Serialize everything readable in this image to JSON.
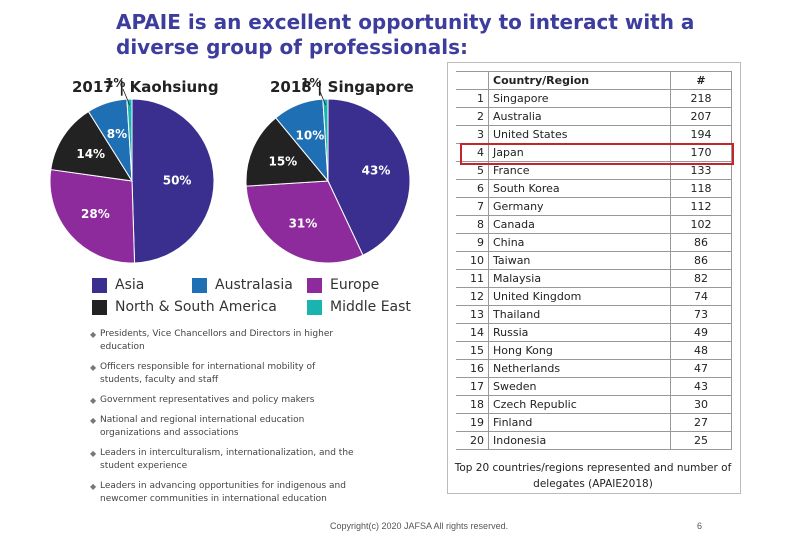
{
  "title": "APAIE is an excellent opportunity to interact with a diverse group of professionals:",
  "colors": {
    "asia": "#3a2f8f",
    "australasia": "#1f6fb4",
    "europe": "#8e2b9c",
    "north_south_america": "#222222",
    "middle_east": "#19b3b0"
  },
  "chart_data": [
    {
      "type": "pie",
      "title": "2017 | Kaohsiung",
      "labels": [
        "Asia",
        "Europe",
        "North & South America",
        "Australasia",
        "Middle East"
      ],
      "values": [
        50,
        28,
        14,
        8,
        1
      ],
      "value_labels": [
        "50%",
        "28%",
        "14%",
        "8%",
        "1%"
      ]
    },
    {
      "type": "pie",
      "title": "2018 | Singapore",
      "labels": [
        "Asia",
        "Europe",
        "North & South America",
        "Australasia",
        "Middle East"
      ],
      "values": [
        43,
        31,
        15,
        10,
        1
      ],
      "value_labels": [
        "43%",
        "31%",
        "15%",
        "10%",
        "1%"
      ]
    },
    {
      "type": "table",
      "columns": [
        "",
        "Country/Region",
        "#"
      ],
      "rows": [
        {
          "rank": "1",
          "country": "Singapore",
          "delegates": "218"
        },
        {
          "rank": "2",
          "country": "Australia",
          "delegates": "207"
        },
        {
          "rank": "3",
          "country": "United States",
          "delegates": "194"
        },
        {
          "rank": "4",
          "country": "Japan",
          "delegates": "170"
        },
        {
          "rank": "5",
          "country": "France",
          "delegates": "133"
        },
        {
          "rank": "6",
          "country": "South Korea",
          "delegates": "118"
        },
        {
          "rank": "7",
          "country": "Germany",
          "delegates": "112"
        },
        {
          "rank": "8",
          "country": "Canada",
          "delegates": "102"
        },
        {
          "rank": "9",
          "country": "China",
          "delegates": "86"
        },
        {
          "rank": "10",
          "country": "Taiwan",
          "delegates": "86"
        },
        {
          "rank": "11",
          "country": "Malaysia",
          "delegates": "82"
        },
        {
          "rank": "12",
          "country": "United Kingdom",
          "delegates": "74"
        },
        {
          "rank": "13",
          "country": "Thailand",
          "delegates": "73"
        },
        {
          "rank": "14",
          "country": "Russia",
          "delegates": "49"
        },
        {
          "rank": "15",
          "country": "Hong Kong",
          "delegates": "48"
        },
        {
          "rank": "16",
          "country": "Netherlands",
          "delegates": "47"
        },
        {
          "rank": "17",
          "country": "Sweden",
          "delegates": "43"
        },
        {
          "rank": "18",
          "country": "Czech Republic",
          "delegates": "30"
        },
        {
          "rank": "19",
          "country": "Finland",
          "delegates": "27"
        },
        {
          "rank": "20",
          "country": "Indonesia",
          "delegates": "25"
        }
      ],
      "highlighted_row": "Japan",
      "caption": "Top 20 countries/regions represented and number of delegates (APAIE2018)"
    }
  ],
  "legend": [
    {
      "label": "Asia",
      "color_key": "asia"
    },
    {
      "label": "Australasia",
      "color_key": "australasia"
    },
    {
      "label": "Europe",
      "color_key": "europe"
    },
    {
      "label": "North & South America",
      "color_key": "north_south_america"
    },
    {
      "label": "Middle East",
      "color_key": "middle_east"
    }
  ],
  "bullets": [
    "Presidents, Vice Chancellors and Directors in higher education",
    "Officers responsible for international mobility of students, faculty and staff",
    "Government representatives and policy makers",
    "National and regional international education organizations and associations",
    "Leaders in interculturalism, internationalization, and the student experience",
    "Leaders in advancing opportunities for indigenous and newcomer communities in international education"
  ],
  "footer": "Copyright(c) 2020 JAFSA All rights reserved.",
  "page_number": "6"
}
